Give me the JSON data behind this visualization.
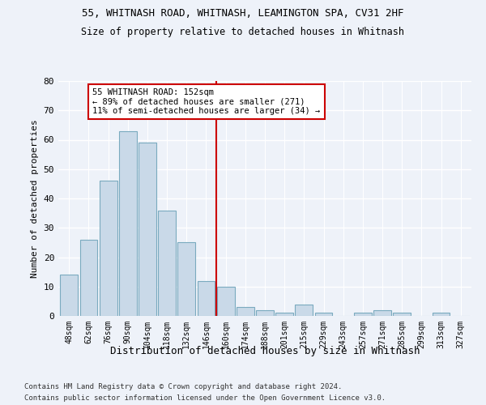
{
  "title1": "55, WHITNASH ROAD, WHITNASH, LEAMINGTON SPA, CV31 2HF",
  "title2": "Size of property relative to detached houses in Whitnash",
  "xlabel": "Distribution of detached houses by size in Whitnash",
  "ylabel": "Number of detached properties",
  "categories": [
    "48sqm",
    "62sqm",
    "76sqm",
    "90sqm",
    "104sqm",
    "118sqm",
    "132sqm",
    "146sqm",
    "160sqm",
    "174sqm",
    "188sqm",
    "201sqm",
    "215sqm",
    "229sqm",
    "243sqm",
    "257sqm",
    "271sqm",
    "285sqm",
    "299sqm",
    "313sqm",
    "327sqm"
  ],
  "bar_values": [
    14,
    26,
    46,
    63,
    59,
    36,
    25,
    12,
    10,
    3,
    2,
    1,
    4,
    1,
    0,
    1,
    2,
    1,
    0,
    1,
    0
  ],
  "bar_color": "#c9d9e8",
  "bar_edge_color": "#7aaabf",
  "vline_x": 7.5,
  "vline_color": "#cc0000",
  "annotation_text": "55 WHITNASH ROAD: 152sqm\n← 89% of detached houses are smaller (271)\n11% of semi-detached houses are larger (34) →",
  "annotation_box_color": "#ffffff",
  "annotation_box_edge": "#cc0000",
  "ylim": [
    0,
    80
  ],
  "yticks": [
    0,
    10,
    20,
    30,
    40,
    50,
    60,
    70,
    80
  ],
  "footnote1": "Contains HM Land Registry data © Crown copyright and database right 2024.",
  "footnote2": "Contains public sector information licensed under the Open Government Licence v3.0.",
  "bg_color": "#eef2f9",
  "grid_color": "#ffffff"
}
